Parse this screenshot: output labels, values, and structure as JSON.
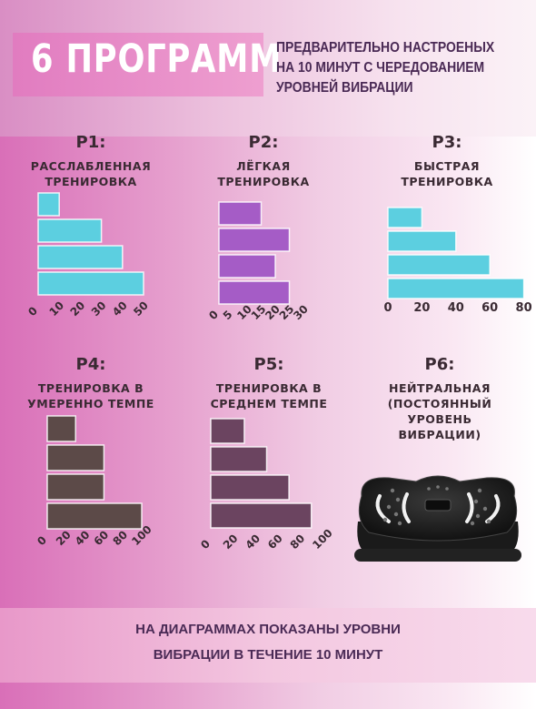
{
  "header": {
    "title": "6 ПРОГРАММ",
    "subtitle_lines": [
      "ПРЕДВАРИТЕЛЬНО НАСТРОЕНЫХ",
      "НА 10 МИНУТ С ЧЕРЕДОВАНИЕМ",
      "УРОВНЕЙ ВИБРАЦИИ"
    ]
  },
  "programs": [
    {
      "code": "P1:",
      "name_lines": [
        "РАССЛАБЛЕННАЯ",
        "ТРЕНИРОВКА"
      ]
    },
    {
      "code": "P2:",
      "name_lines": [
        "ЛЁГКАЯ",
        "ТРЕНИРОВКА"
      ]
    },
    {
      "code": "P3:",
      "name_lines": [
        "БЫСТРАЯ",
        "ТРЕНИРОВКА"
      ]
    },
    {
      "code": "P4:",
      "name_lines": [
        "ТРЕНИРОВКА В",
        "УМЕРЕННО ТЕМПЕ"
      ]
    },
    {
      "code": "P5:",
      "name_lines": [
        "ТРЕНИРОВКА В",
        "СРЕДНЕМ ТЕМПЕ"
      ]
    },
    {
      "code": "P6:",
      "name_lines": [
        "НЕЙТРАЛЬНАЯ",
        "(ПОСТОЯННЫЙ",
        "УРОВЕНЬ",
        "ВИБРАЦИИ)"
      ]
    }
  ],
  "footer": {
    "lines": [
      "НА ДИАГРАММАХ ПОКАЗАНЫ УРОВНИ",
      "ВИБРАЦИИ В ТЕЧЕНИЕ 10 МИНУТ"
    ]
  },
  "colors": {
    "p1": "#5ccfe0",
    "p2": "#a55cc6",
    "p3": "#5ccfe0",
    "p4": "#5c4a48",
    "p5": "#6b4460",
    "text": "#3a2a33"
  },
  "chart_data": [
    {
      "type": "bar",
      "orientation": "horizontal",
      "program": "P1",
      "values": [
        10,
        30,
        40,
        50
      ],
      "xticks": [
        "0",
        "10",
        "20",
        "30",
        "40",
        "50"
      ],
      "xlim": [
        0,
        50
      ]
    },
    {
      "type": "bar",
      "orientation": "horizontal",
      "program": "P2",
      "values": [
        15,
        25,
        20,
        25
      ],
      "xticks": [
        "0",
        "5",
        "10",
        "15",
        "20",
        "25",
        "30"
      ],
      "xlim": [
        0,
        30
      ]
    },
    {
      "type": "bar",
      "orientation": "horizontal",
      "program": "P3",
      "values": [
        20,
        40,
        60,
        80
      ],
      "xticks": [
        "0",
        "20",
        "40",
        "60",
        "80"
      ],
      "xlim": [
        0,
        80
      ]
    },
    {
      "type": "bar",
      "orientation": "horizontal",
      "program": "P4",
      "values": [
        30,
        60,
        60,
        100
      ],
      "xticks": [
        "0",
        "20",
        "40",
        "60",
        "80",
        "100"
      ],
      "xlim": [
        0,
        100
      ]
    },
    {
      "type": "bar",
      "orientation": "horizontal",
      "program": "P5",
      "values": [
        30,
        50,
        70,
        90
      ],
      "xticks": [
        "0",
        "20",
        "40",
        "60",
        "80",
        "100"
      ],
      "xlim": [
        0,
        100
      ]
    }
  ]
}
